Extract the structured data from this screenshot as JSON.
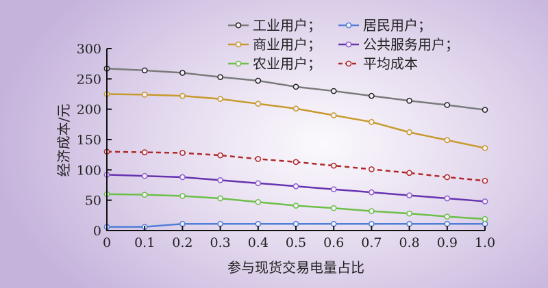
{
  "chart_data": {
    "type": "line",
    "xlabel": "参与现货交易电量占比",
    "ylabel": "经济成本/元",
    "x": [
      0,
      0.1,
      0.2,
      0.3,
      0.4,
      0.5,
      0.6,
      0.7,
      0.8,
      0.9,
      1.0
    ],
    "xtick_labels": [
      "0",
      "0.1",
      "0.2",
      "0.3",
      "0.4",
      "0.5",
      "0.6",
      "0.7",
      "0.8",
      "0.9",
      "1.0"
    ],
    "ylim": [
      0,
      300
    ],
    "yticks": [
      "0",
      "50",
      "100",
      "150",
      "200",
      "250",
      "300"
    ],
    "legend_position": "top-right",
    "series": [
      {
        "name": "工业用户；",
        "color": "#7a7a7a",
        "marker": "#222222",
        "dashed": false,
        "values": [
          267,
          264,
          260,
          253,
          247,
          237,
          230,
          222,
          214,
          207,
          199
        ]
      },
      {
        "name": "居民用户；",
        "color": "#4f7fd6",
        "marker": "#4f7fd6",
        "dashed": false,
        "values": [
          6,
          6,
          11,
          11,
          11,
          11,
          11,
          11,
          11,
          11,
          11
        ]
      },
      {
        "name": "商业用户；",
        "color": "#c79a2c",
        "marker": "#c79a2c",
        "dashed": false,
        "values": [
          225,
          224,
          222,
          217,
          209,
          201,
          190,
          179,
          162,
          149,
          136
        ]
      },
      {
        "name": "公共服务用户；",
        "color": "#6633b0",
        "marker": "#8a5cd0",
        "dashed": false,
        "values": [
          92,
          90,
          88,
          83,
          78,
          73,
          68,
          63,
          58,
          53,
          48
        ]
      },
      {
        "name": "农业用户；",
        "color": "#6cbf48",
        "marker": "#6cbf48",
        "dashed": false,
        "values": [
          60,
          59,
          57,
          53,
          47,
          41,
          37,
          32,
          28,
          23,
          19
        ]
      },
      {
        "name": "平均成本",
        "color": "#b02828",
        "marker": "#b02828",
        "dashed": true,
        "values": [
          130,
          129,
          128,
          124,
          118,
          113,
          107,
          101,
          95,
          88,
          82
        ]
      }
    ]
  }
}
